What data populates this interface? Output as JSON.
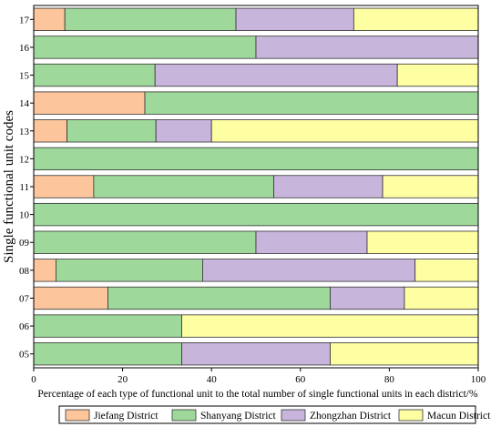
{
  "chart_data": {
    "type": "bar",
    "orientation": "horizontal",
    "stacked": true,
    "percent_stacked": true,
    "title": "",
    "xlabel": "Percentage of each type of functional unit to the total number of single functional units in each district/%",
    "ylabel": "Single functional unit codes",
    "xlim": [
      0,
      100
    ],
    "xticks": [
      "0",
      "20",
      "40",
      "60",
      "80",
      "100"
    ],
    "categories": [
      "17",
      "16",
      "15",
      "14",
      "13",
      "12",
      "11",
      "10",
      "09",
      "08",
      "07",
      "06",
      "05"
    ],
    "series": [
      {
        "name": "Jiefang District",
        "color": "#fcc59b",
        "values": [
          7,
          0,
          0,
          25,
          7.5,
          0,
          13.5,
          0,
          0,
          5,
          16.7,
          0,
          0
        ]
      },
      {
        "name": "Shanyang District",
        "color": "#9fd89b",
        "values": [
          38.5,
          50,
          27.3,
          75,
          20,
          100,
          40.5,
          100,
          50,
          33,
          50,
          33.3,
          33.3
        ]
      },
      {
        "name": "Zhongzhan District",
        "color": "#c8b5db",
        "values": [
          26.5,
          50,
          54.5,
          0,
          12.5,
          0,
          24.5,
          0,
          25,
          47.8,
          16.7,
          0,
          33.4
        ]
      },
      {
        "name": "Macun District",
        "color": "#fefea3",
        "values": [
          28,
          0,
          18.2,
          0,
          60,
          0,
          21.5,
          0,
          25,
          14.2,
          16.6,
          66.7,
          33.3
        ]
      }
    ],
    "legend_position": "bottom",
    "grid": false
  }
}
